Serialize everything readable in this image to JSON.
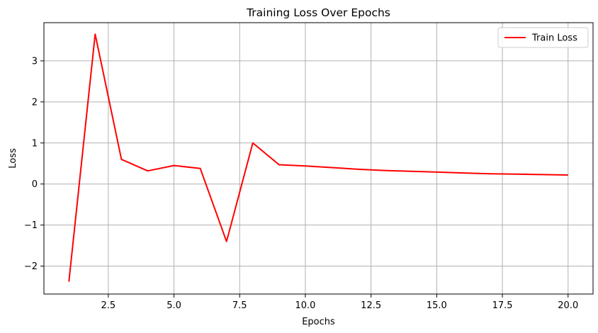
{
  "chart_data": {
    "type": "line",
    "title": "Training Loss Over Epochs",
    "xlabel": "Epochs",
    "ylabel": "Loss",
    "xlim": [
      0.05,
      20.95
    ],
    "ylim": [
      -2.68,
      3.93
    ],
    "xticks": [
      2.5,
      5.0,
      7.5,
      10.0,
      12.5,
      15.0,
      17.5,
      20.0
    ],
    "xtick_labels": [
      "2.5",
      "5.0",
      "7.5",
      "10.0",
      "12.5",
      "15.0",
      "17.5",
      "20.0"
    ],
    "yticks": [
      -2,
      -1,
      0,
      1,
      2,
      3
    ],
    "ytick_labels": [
      "−2",
      "−1",
      "0",
      "1",
      "2",
      "3"
    ],
    "grid": true,
    "legend": "top-right",
    "series": [
      {
        "name": "Train Loss",
        "color": "#ff0000",
        "x": [
          1,
          2,
          3,
          4,
          5,
          6,
          7,
          8,
          9,
          10,
          11,
          12,
          13,
          14,
          15,
          16,
          17,
          18,
          19,
          20
        ],
        "values": [
          -2.38,
          3.65,
          0.6,
          0.32,
          0.45,
          0.38,
          -1.4,
          1.0,
          0.47,
          0.44,
          0.4,
          0.36,
          0.33,
          0.31,
          0.29,
          0.27,
          0.25,
          0.24,
          0.23,
          0.22
        ]
      }
    ]
  }
}
